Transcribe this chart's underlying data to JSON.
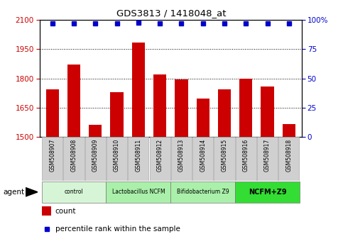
{
  "title": "GDS3813 / 1418048_at",
  "samples": [
    "GSM508907",
    "GSM508908",
    "GSM508909",
    "GSM508910",
    "GSM508911",
    "GSM508912",
    "GSM508913",
    "GSM508914",
    "GSM508915",
    "GSM508916",
    "GSM508917",
    "GSM508918"
  ],
  "counts": [
    1745,
    1870,
    1560,
    1730,
    1985,
    1820,
    1795,
    1695,
    1745,
    1800,
    1760,
    1565
  ],
  "percentile_values": [
    97,
    97,
    97,
    97,
    98,
    97,
    97,
    97,
    97,
    97,
    97,
    97
  ],
  "ylim_left": [
    1500,
    2100
  ],
  "ylim_right": [
    0,
    100
  ],
  "yticks_left": [
    1500,
    1650,
    1800,
    1950,
    2100
  ],
  "yticks_right": [
    0,
    25,
    50,
    75,
    100
  ],
  "bar_color": "#cc0000",
  "dot_color": "#0000cc",
  "bar_width": 0.6,
  "groups": [
    {
      "label": "control",
      "start": 0,
      "end": 3,
      "color": "#d6f5d6"
    },
    {
      "label": "Lactobacillus NCFM",
      "start": 3,
      "end": 6,
      "color": "#aaf0aa"
    },
    {
      "label": "Bifidobacterium Z9",
      "start": 6,
      "end": 9,
      "color": "#aaf0aa"
    },
    {
      "label": "NCFM+Z9",
      "start": 9,
      "end": 12,
      "color": "#33dd33"
    }
  ],
  "agent_label": "agent",
  "legend_count_label": "count",
  "legend_pct_label": "percentile rank within the sample",
  "bar_color_legend": "#cc0000",
  "dot_color_legend": "#0000cc",
  "tick_label_color_left": "#cc0000",
  "tick_label_color_right": "#0000cc",
  "grid_color": "#000000",
  "sample_box_color": "#d0d0d0",
  "sample_box_edge": "#aaaaaa"
}
